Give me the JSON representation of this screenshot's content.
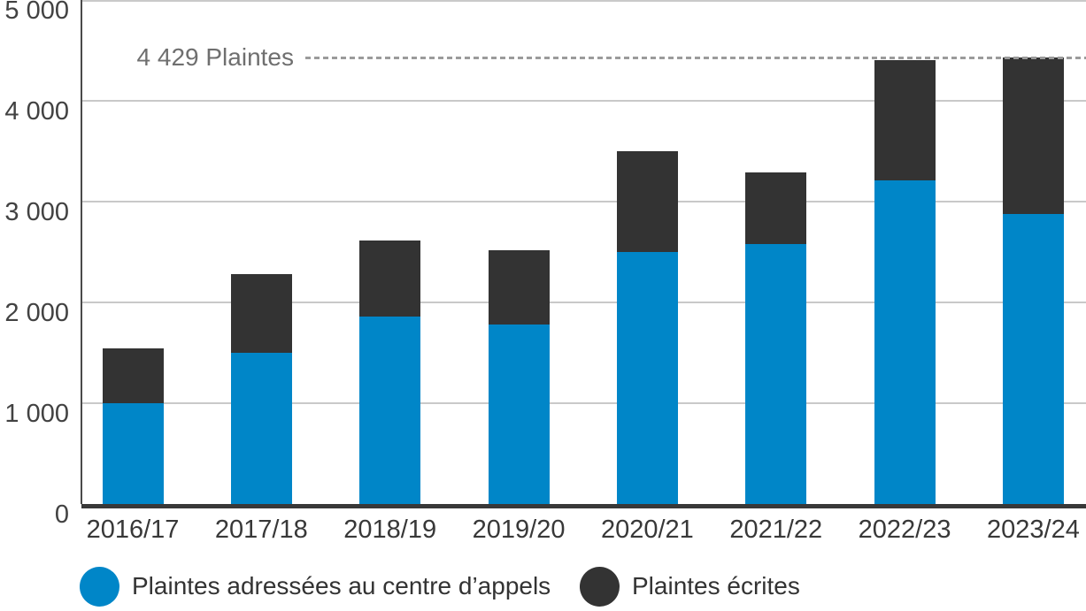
{
  "chart_data": {
    "type": "bar",
    "stacked": true,
    "title": "",
    "categories": [
      "2016/17",
      "2017/18",
      "2018/19",
      "2019/20",
      "2020/21",
      "2021/22",
      "2022/23",
      "2023/24"
    ],
    "series": [
      {
        "name": "Plaintes adressées au centre d’appels",
        "color": "#0086C8",
        "values": [
          1000,
          1500,
          1860,
          1780,
          2500,
          2580,
          3210,
          2880
        ]
      },
      {
        "name": "Plaintes écrites",
        "color": "#333333",
        "values": [
          540,
          780,
          750,
          740,
          1000,
          710,
          1190,
          1549
        ]
      }
    ],
    "totals": [
      1540,
      2280,
      2610,
      2520,
      3500,
      3290,
      4400,
      4429
    ],
    "ylim": [
      0,
      5000
    ],
    "yticks": [
      0,
      1000,
      2000,
      3000,
      4000,
      5000
    ],
    "ytick_labels": [
      "0",
      "1 000",
      "2 000",
      "3 000",
      "4 000",
      "5 000"
    ],
    "xlabel": "",
    "ylabel": "",
    "grid": true,
    "legend_position": "bottom",
    "annotation": {
      "label": "4 429 Plaintes",
      "value": 4429
    }
  },
  "colors": {
    "calls_blue": "#0086C8",
    "written_dark": "#333333",
    "gridline": "#C9C9C9",
    "axis": "#383838",
    "tick_label": "#424242",
    "annotation_text": "#6F6F6F",
    "dashed_line": "#9B9B9B",
    "background": "#FFFFFF"
  }
}
